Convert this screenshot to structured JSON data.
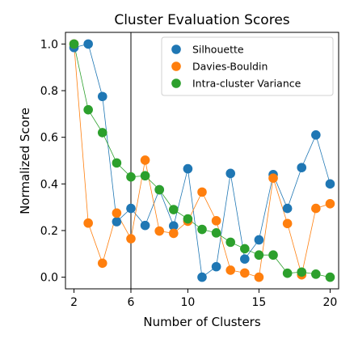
{
  "chart_data": {
    "type": "line",
    "title": "Cluster Evaluation Scores",
    "xlabel": "Number of Clusters",
    "ylabel": "Normalized Score",
    "xlim": [
      1.4,
      20.6
    ],
    "ylim": [
      -0.05,
      1.05
    ],
    "xticks": [
      2,
      6,
      10,
      15,
      20
    ],
    "yticks": [
      0.0,
      0.2,
      0.4,
      0.6,
      0.8,
      1.0
    ],
    "ytick_labels": [
      "0.0",
      "0.2",
      "0.4",
      "0.6",
      "0.8",
      "1.0"
    ],
    "grid": false,
    "legend_position": "top-right",
    "vline": 6,
    "x": [
      2,
      3,
      4,
      5,
      6,
      7,
      8,
      9,
      10,
      11,
      12,
      13,
      14,
      15,
      16,
      17,
      18,
      19,
      20
    ],
    "series": [
      {
        "name": "Silhouette",
        "color": "#1f77b4",
        "values": [
          0.985,
          1.0,
          0.775,
          0.238,
          0.295,
          0.222,
          0.375,
          0.22,
          0.465,
          0.0,
          0.045,
          0.445,
          0.078,
          0.16,
          0.44,
          0.295,
          0.47,
          0.61,
          0.4
        ]
      },
      {
        "name": "Davies-Bouldin",
        "color": "#ff7f0e",
        "values": [
          1.0,
          0.232,
          0.06,
          0.275,
          0.165,
          0.502,
          0.198,
          0.188,
          0.24,
          0.365,
          0.242,
          0.03,
          0.018,
          0.0,
          0.425,
          0.23,
          0.01,
          0.295,
          0.315
        ]
      },
      {
        "name": "Intra-cluster Variance",
        "color": "#2ca02c",
        "values": [
          1.0,
          0.718,
          0.62,
          0.49,
          0.43,
          0.435,
          0.375,
          0.29,
          0.25,
          0.205,
          0.19,
          0.15,
          0.122,
          0.095,
          0.095,
          0.017,
          0.022,
          0.013,
          0.0
        ]
      }
    ]
  }
}
